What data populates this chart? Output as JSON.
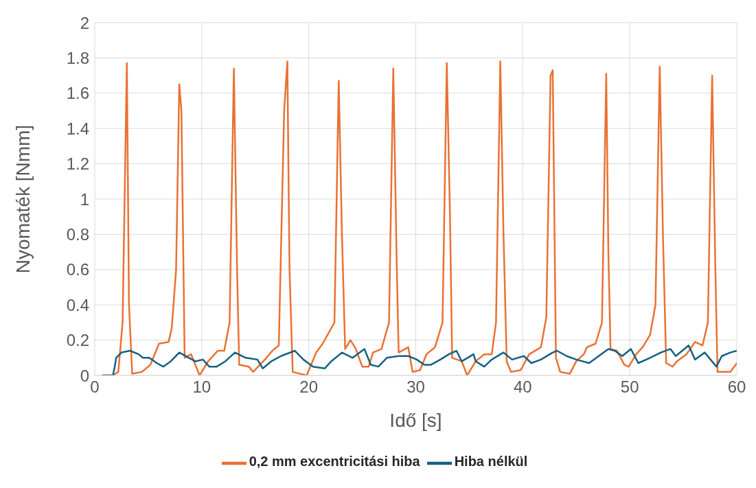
{
  "chart_data": {
    "type": "line",
    "xlabel": "Idő [s]",
    "ylabel": "Nyomaték [Nmm]",
    "xlim": [
      0,
      60
    ],
    "xticks": [
      0,
      10,
      20,
      30,
      40,
      50,
      60
    ],
    "ylim": [
      0,
      2
    ],
    "yticks": [
      0,
      0.2,
      0.4,
      0.6,
      0.8,
      1,
      1.2,
      1.4,
      1.6,
      1.8,
      2
    ],
    "grid": true,
    "legend": "bottom",
    "marker": "none",
    "line_style": "solid",
    "series": [
      {
        "name": "0,2 mm excentricitási hiba",
        "color": "#e97132",
        "x": [
          0.7,
          1.7,
          2.2,
          2.6,
          3.0,
          3.2,
          3.5,
          4.4,
          5.2,
          6.0,
          6.9,
          7.2,
          7.6,
          7.9,
          8.1,
          8.4,
          9.0,
          9.8,
          10.6,
          11.5,
          12.1,
          12.6,
          13.0,
          13.3,
          13.5,
          14.4,
          14.8,
          15.9,
          16.6,
          17.2,
          17.7,
          18.0,
          18.2,
          18.5,
          19.8,
          20.7,
          21.3,
          22.4,
          22.8,
          23.1,
          23.4,
          23.9,
          24.4,
          25.0,
          25.6,
          26.0,
          26.8,
          27.5,
          27.9,
          28.2,
          28.4,
          29.3,
          29.7,
          30.4,
          31.0,
          31.8,
          32.5,
          32.9,
          33.2,
          33.4,
          34.3,
          34.8,
          35.6,
          36.4,
          37.1,
          37.5,
          37.9,
          38.2,
          38.5,
          38.9,
          39.8,
          40.6,
          41.7,
          42.2,
          42.6,
          42.8,
          43.1,
          43.5,
          44.4,
          45.0,
          45.7,
          46.0,
          46.8,
          47.4,
          47.8,
          48.0,
          48.2,
          48.8,
          49.5,
          49.9,
          50.6,
          51.2,
          51.9,
          52.4,
          52.8,
          53.1,
          53.4,
          54.0,
          54.4,
          55.3,
          56.1,
          56.8,
          57.3,
          57.7,
          58.0,
          58.2,
          59.4,
          59.9,
          60.0
        ],
        "values": [
          0,
          0,
          0.02,
          0.3,
          1.77,
          0.4,
          0.01,
          0.02,
          0.06,
          0.18,
          0.19,
          0.27,
          0.6,
          1.65,
          1.5,
          0.1,
          0.12,
          0,
          0.08,
          0.14,
          0.14,
          0.3,
          1.74,
          0.6,
          0.06,
          0.05,
          0.02,
          0.09,
          0.14,
          0.17,
          1.5,
          1.78,
          0.6,
          0.02,
          0,
          0.13,
          0.18,
          0.3,
          1.67,
          0.8,
          0.15,
          0.2,
          0.15,
          0.05,
          0.05,
          0.13,
          0.15,
          0.3,
          1.74,
          0.7,
          0.13,
          0.16,
          0.02,
          0.03,
          0.12,
          0.16,
          0.3,
          1.77,
          0.9,
          0.1,
          0.08,
          0,
          0.08,
          0.12,
          0.12,
          0.3,
          1.78,
          0.8,
          0.08,
          0.02,
          0.03,
          0.12,
          0.16,
          0.33,
          1.7,
          1.73,
          0.1,
          0.02,
          0.01,
          0.08,
          0.12,
          0.16,
          0.18,
          0.3,
          1.71,
          0.7,
          0.15,
          0.14,
          0.06,
          0.05,
          0.12,
          0.16,
          0.23,
          0.4,
          1.75,
          0.8,
          0.07,
          0.05,
          0.08,
          0.12,
          0.19,
          0.17,
          0.3,
          1.7,
          0.6,
          0.02,
          0.02,
          0.06,
          0.07
        ]
      },
      {
        "name": "Hiba nélkül",
        "color": "#156082",
        "x": [
          0.7,
          1.7,
          1.9,
          2.0,
          2.5,
          3.3,
          4.1,
          4.5,
          5.1,
          5.8,
          6.4,
          7.1,
          7.9,
          8.8,
          9.4,
          10.1,
          10.7,
          11.4,
          12.2,
          13.1,
          14.1,
          15.2,
          15.7,
          16.5,
          17.4,
          18.7,
          19.5,
          20.4,
          21.5,
          22.1,
          23.1,
          24.1,
          25.2,
          25.8,
          26.5,
          27.3,
          28.4,
          29.3,
          30.1,
          30.8,
          31.4,
          32.3,
          33.1,
          33.8,
          34.3,
          35.4,
          35.6,
          36.4,
          37.1,
          38.2,
          39.0,
          40.1,
          40.8,
          41.7,
          42.8,
          43.2,
          44.1,
          45.0,
          46.2,
          47.1,
          48.0,
          48.6,
          49.3,
          50.1,
          50.8,
          51.9,
          52.9,
          53.8,
          54.3,
          55.5,
          56.1,
          57.0,
          58.1,
          58.6,
          59.4,
          60.0
        ],
        "values": [
          0,
          0,
          0.06,
          0.1,
          0.13,
          0.14,
          0.12,
          0.1,
          0.1,
          0.07,
          0.05,
          0.08,
          0.13,
          0.1,
          0.08,
          0.09,
          0.05,
          0.05,
          0.08,
          0.13,
          0.1,
          0.09,
          0.04,
          0.08,
          0.11,
          0.14,
          0.09,
          0.05,
          0.04,
          0.08,
          0.13,
          0.1,
          0.15,
          0.06,
          0.05,
          0.1,
          0.11,
          0.11,
          0.09,
          0.06,
          0.06,
          0.09,
          0.12,
          0.14,
          0.08,
          0.12,
          0.08,
          0.05,
          0.09,
          0.13,
          0.09,
          0.11,
          0.07,
          0.09,
          0.13,
          0.14,
          0.11,
          0.09,
          0.07,
          0.11,
          0.15,
          0.14,
          0.11,
          0.15,
          0.07,
          0.1,
          0.13,
          0.15,
          0.11,
          0.17,
          0.09,
          0.13,
          0.05,
          0.11,
          0.13,
          0.14
        ]
      }
    ]
  }
}
